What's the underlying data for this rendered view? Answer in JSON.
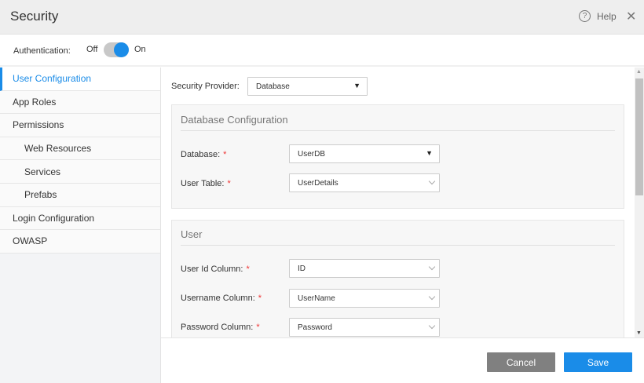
{
  "header": {
    "title": "Security",
    "help_label": "Help",
    "help_icon": "question-circle-icon",
    "close_icon": "close-icon",
    "close_glyph": "✕"
  },
  "auth": {
    "label": "Authentication:",
    "off_label": "Off",
    "on_label": "On",
    "enabled": true,
    "accent": "#1a8ce8"
  },
  "sidebar": {
    "items": [
      {
        "label": "User Configuration",
        "active": true
      },
      {
        "label": "App Roles"
      },
      {
        "label": "Permissions"
      },
      {
        "label": "Web Resources",
        "sub": true
      },
      {
        "label": "Services",
        "sub": true
      },
      {
        "label": "Prefabs",
        "sub": true
      },
      {
        "label": "Login Configuration"
      },
      {
        "label": "OWASP"
      }
    ]
  },
  "main": {
    "provider_label": "Security Provider:",
    "provider_value": "Database",
    "db_panel": {
      "title": "Database Configuration",
      "database_label": "Database:",
      "database_value": "UserDB",
      "table_label": "User Table:",
      "table_value": "UserDetails"
    },
    "user_panel": {
      "title": "User",
      "id_label": "User Id Column:",
      "id_value": "ID",
      "username_label": "Username Column:",
      "username_value": "UserName",
      "password_label": "Password Column:",
      "password_value": "Password"
    },
    "required_mark": "*"
  },
  "footer": {
    "cancel_label": "Cancel",
    "save_label": "Save"
  }
}
